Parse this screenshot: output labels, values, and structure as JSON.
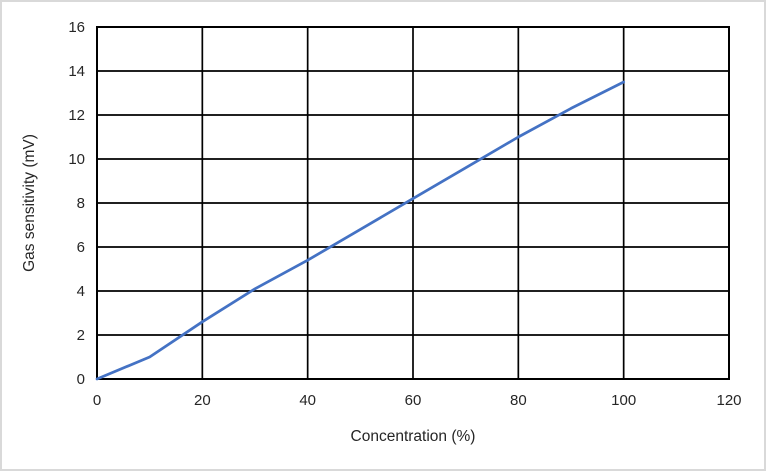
{
  "chart_data": {
    "type": "line",
    "title": "",
    "xlabel": "Concentration (%)",
    "ylabel": "Gas sensitivity (mV)",
    "x": [
      0,
      10,
      20,
      30,
      40,
      50,
      60,
      70,
      80,
      90,
      100
    ],
    "series": [
      {
        "name": "Gas sensitivity",
        "values": [
          0,
          1.0,
          2.6,
          4.1,
          5.4,
          6.8,
          8.2,
          9.6,
          11.0,
          12.3,
          13.5
        ]
      }
    ],
    "xlim": [
      0,
      120
    ],
    "ylim": [
      0,
      16
    ],
    "x_ticks": [
      0,
      20,
      40,
      60,
      80,
      100,
      120
    ],
    "y_ticks": [
      0,
      2,
      4,
      6,
      8,
      10,
      12,
      14,
      16
    ],
    "grid": "on",
    "legend": "none",
    "line_color": "#4472C4",
    "grid_color": "#000000",
    "axis_text_color": "#262626",
    "plot_background": "#ffffff",
    "outer_border_color": "#d9d9d9"
  }
}
